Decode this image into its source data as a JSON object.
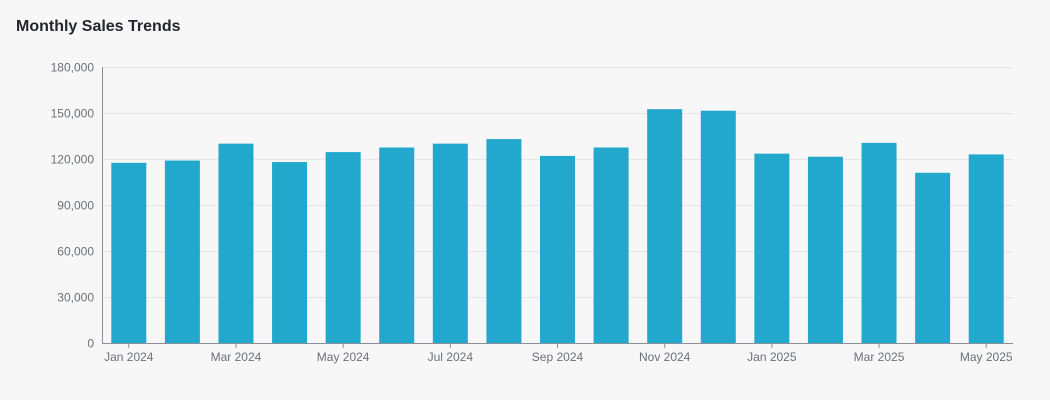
{
  "chart_data": {
    "type": "bar",
    "title": "Monthly Sales Trends",
    "xlabel": "",
    "ylabel": "",
    "categories": [
      "Jan 2024",
      "Feb 2024",
      "Mar 2024",
      "Apr 2024",
      "May 2024",
      "Jun 2024",
      "Jul 2024",
      "Aug 2024",
      "Sep 2024",
      "Oct 2024",
      "Nov 2024",
      "Dec 2024",
      "Jan 2025",
      "Feb 2025",
      "Mar 2025",
      "Apr 2025",
      "May 2025"
    ],
    "x_tick_labels": [
      "Jan 2024",
      "",
      "Mar 2024",
      "",
      "May 2024",
      "",
      "Jul 2024",
      "",
      "Sep 2024",
      "",
      "Nov 2024",
      "",
      "Jan 2025",
      "",
      "Mar 2025",
      "",
      "May 2025"
    ],
    "values": [
      117500,
      119000,
      130000,
      118000,
      124500,
      127500,
      130000,
      133000,
      122000,
      127500,
      152500,
      151500,
      123500,
      121500,
      130500,
      111000,
      123000
    ],
    "ylim": [
      0,
      180000
    ],
    "y_ticks": [
      0,
      30000,
      60000,
      90000,
      120000,
      150000,
      180000
    ],
    "y_tick_labels": [
      "0",
      "30,000",
      "60,000",
      "90,000",
      "120,000",
      "150,000",
      "180,000"
    ],
    "grid": true,
    "legend": "none",
    "colors": {
      "bar": "#21a8cc",
      "grid": "#e3e5ea",
      "axis": "#8a8f98",
      "text": "#6b7079"
    }
  }
}
